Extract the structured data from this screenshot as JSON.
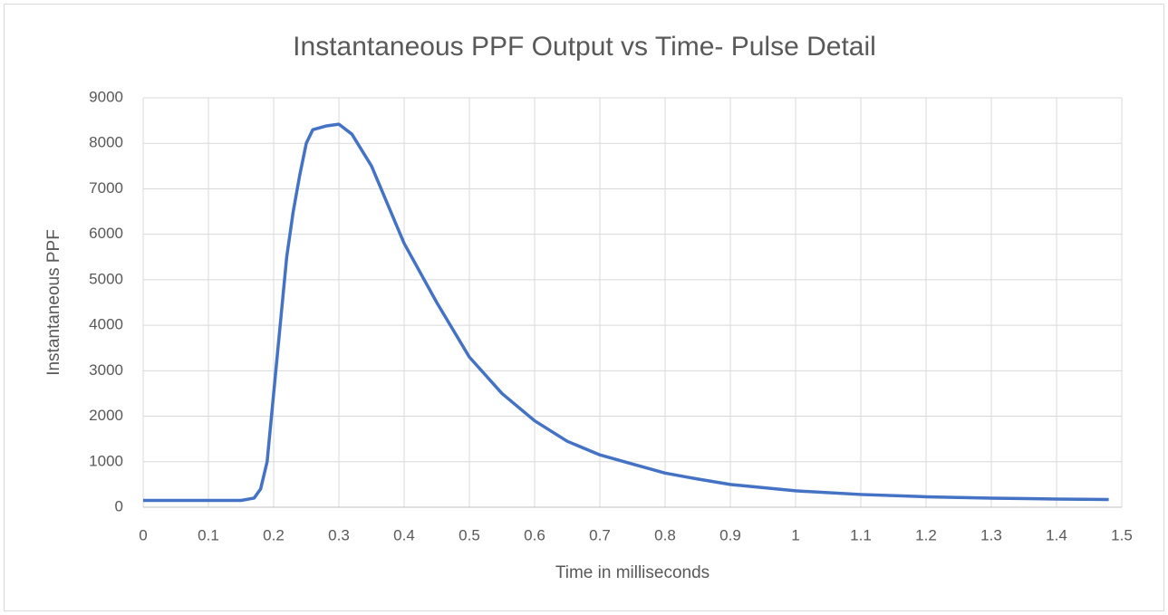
{
  "chart_data": {
    "type": "line",
    "title": "Instantaneous PPF Output vs Time- Pulse Detail",
    "x_label": "Time in milliseconds",
    "y_label": "Instantaneous PPF",
    "x": [
      0,
      0.1,
      0.15,
      0.17,
      0.18,
      0.19,
      0.2,
      0.21,
      0.22,
      0.23,
      0.24,
      0.25,
      0.26,
      0.28,
      0.3,
      0.32,
      0.35,
      0.4,
      0.45,
      0.5,
      0.55,
      0.6,
      0.65,
      0.7,
      0.75,
      0.8,
      0.85,
      0.9,
      0.95,
      1.0,
      1.1,
      1.2,
      1.3,
      1.4,
      1.48
    ],
    "series": [
      {
        "name": "Instantaneous PPF",
        "color": "#4472c4",
        "values": [
          150,
          150,
          150,
          200,
          400,
          1000,
          2500,
          4000,
          5500,
          6500,
          7300,
          8000,
          8300,
          8380,
          8420,
          8200,
          7500,
          5800,
          4500,
          3300,
          2500,
          1900,
          1450,
          1150,
          950,
          750,
          620,
          500,
          430,
          360,
          280,
          230,
          200,
          180,
          170
        ]
      }
    ],
    "xlim": [
      0,
      1.5
    ],
    "xticks": [
      0,
      0.1,
      0.2,
      0.3,
      0.4,
      0.5,
      0.6,
      0.7,
      0.8,
      0.9,
      1,
      1.1,
      1.2,
      1.3,
      1.4,
      1.5
    ],
    "ylim": [
      0,
      9000
    ],
    "yticks": [
      0,
      1000,
      2000,
      3000,
      4000,
      5000,
      6000,
      7000,
      8000,
      9000
    ],
    "grid": true
  }
}
